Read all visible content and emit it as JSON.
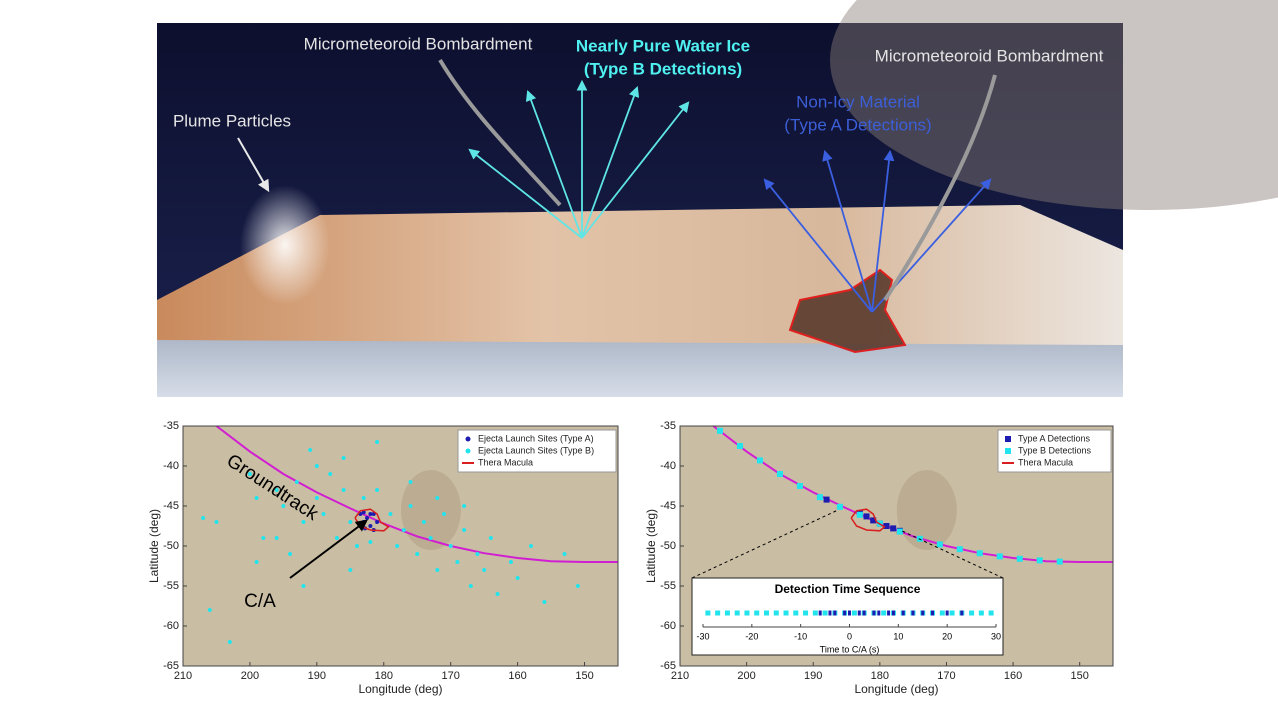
{
  "illustration": {
    "labels": [
      "Micrometeoroid Bombardment",
      "Nearly Pure Water Ice",
      "(Type B Detections)",
      "Plume Particles",
      "Micrometeoroid Bombardment",
      "Non-Icy Material",
      "(Type A Detections)"
    ]
  },
  "chart_data": [
    {
      "type": "scatter",
      "xlabel": "Longitude (deg)",
      "ylabel": "Latitude (deg)",
      "xlim": [
        210,
        145
      ],
      "ylim": [
        -35,
        -65
      ],
      "xticks": [
        210,
        200,
        190,
        180,
        170,
        160,
        150
      ],
      "yticks": [
        -35,
        -40,
        -45,
        -50,
        -55,
        -60,
        -65
      ],
      "legend": "upper right",
      "annotations": [
        {
          "text": "Groundtrack"
        },
        {
          "text": "C/A"
        }
      ],
      "groundtrack": {
        "color": "#d21ed2",
        "x": [
          205,
          200,
          195,
          190,
          185,
          180,
          175,
          170,
          165,
          160,
          155,
          150,
          145
        ],
        "values": [
          -35,
          -38.2,
          -41,
          -43.3,
          -45.3,
          -47.2,
          -48.8,
          -50,
          -50.9,
          -51.5,
          -51.9,
          -52,
          -52
        ]
      },
      "series": [
        {
          "name": "Ejecta Launch Sites (Type A)",
          "color": "#1c1cb0",
          "marker": "circle",
          "x": [
            183.5,
            183,
            182.5,
            182,
            181.5,
            181,
            182,
            183,
            181.5,
            182.8
          ],
          "values": [
            -46,
            -47,
            -46.5,
            -47.5,
            -46,
            -47,
            -46,
            -45.8,
            -48,
            -47.8
          ]
        },
        {
          "name": "Ejecta Launch Sites (Type B)",
          "color": "#22e4ec",
          "marker": "circle",
          "x": [
            207,
            206,
            205,
            203,
            200,
            199,
            198,
            196,
            195,
            194,
            193,
            192,
            191,
            190,
            189,
            188,
            187,
            186,
            185,
            184,
            183,
            182,
            181,
            179,
            178,
            177,
            176,
            175,
            174,
            173,
            172,
            171,
            170,
            169,
            168,
            167,
            166,
            165,
            164,
            163,
            161,
            160,
            158,
            156,
            153,
            151,
            190,
            186,
            181,
            176,
            172,
            168,
            196,
            199,
            192,
            185
          ],
          "values": [
            -46.5,
            -58,
            -47,
            -62,
            -41,
            -44,
            -49,
            -43,
            -45,
            -51,
            -42,
            -47,
            -38,
            -44,
            -46,
            -41,
            -49,
            -43,
            -47,
            -50,
            -44,
            -49.5,
            -43,
            -46,
            -50,
            -48,
            -45,
            -51,
            -47,
            -49,
            -53,
            -46,
            -50,
            -52,
            -48,
            -55,
            -51,
            -53,
            -49,
            -56,
            -52,
            -54,
            -50,
            -57,
            -51,
            -55,
            -40,
            -39,
            -37,
            -42,
            -44,
            -45,
            -49,
            -52,
            -55,
            -53
          ]
        },
        {
          "name": "Thera Macula",
          "color": "#d81e1e",
          "marker": "line",
          "x": [
            184.3,
            183.5,
            182,
            181,
            180.5,
            179.3,
            180,
            182,
            183.5,
            184.3
          ],
          "values": [
            -46.5,
            -45.6,
            -45.4,
            -46,
            -47,
            -47.6,
            -48.1,
            -48,
            -47.5,
            -46.5
          ]
        }
      ]
    },
    {
      "type": "scatter",
      "xlabel": "Longitude (deg)",
      "ylabel": "Latitude (deg)",
      "xlim": [
        210,
        145
      ],
      "ylim": [
        -35,
        -65
      ],
      "xticks": [
        210,
        200,
        190,
        180,
        170,
        160,
        150
      ],
      "yticks": [
        -35,
        -40,
        -45,
        -50,
        -55,
        -60,
        -65
      ],
      "legend": "upper right",
      "groundtrack": {
        "color": "#d21ed2",
        "x": [
          205,
          200,
          195,
          190,
          185,
          180,
          175,
          170,
          165,
          160,
          155,
          150,
          145
        ],
        "values": [
          -35,
          -38.2,
          -41,
          -43.3,
          -45.3,
          -47.2,
          -48.8,
          -50,
          -50.9,
          -51.5,
          -51.9,
          -52,
          -52
        ]
      },
      "series": [
        {
          "name": "Type A Detections",
          "color": "#1c1cb0",
          "marker": "square",
          "x": [
            188,
            183,
            182,
            181,
            180,
            179,
            178,
            177
          ],
          "values": [
            -44.2,
            -45.9,
            -46.3,
            -46.8,
            -47.2,
            -47.5,
            -47.8,
            -48.1
          ]
        },
        {
          "name": "Type B Detections",
          "color": "#22e4ec",
          "marker": "square",
          "x": [
            204,
            201,
            198,
            195,
            192,
            189,
            186,
            183,
            180,
            177,
            174,
            171,
            168,
            165,
            162,
            159,
            156,
            153
          ],
          "values": [
            -35.6,
            -37.5,
            -39.3,
            -41,
            -42.5,
            -43.9,
            -45.1,
            -46.1,
            -47.2,
            -48.2,
            -49.1,
            -49.8,
            -50.4,
            -50.9,
            -51.3,
            -51.6,
            -51.8,
            -51.95
          ]
        },
        {
          "name": "Thera Macula",
          "color": "#d81e1e",
          "marker": "line",
          "x": [
            184.3,
            183.5,
            182,
            181,
            180.5,
            179.3,
            180,
            182,
            183.5,
            184.3
          ],
          "values": [
            -46.5,
            -45.6,
            -45.4,
            -46,
            -47,
            -47.6,
            -48.1,
            -48,
            -47.5,
            -46.5
          ]
        }
      ]
    },
    {
      "type": "strip",
      "title": "Detection Time Sequence",
      "xlabel": "Time to C/A (s)",
      "xlim": [
        -30,
        30
      ],
      "xticks": [
        -30,
        -20,
        -10,
        0,
        10,
        20,
        30
      ],
      "series": [
        {
          "name": "Type B Detections",
          "color": "#22e4ec",
          "values": [
            -29,
            -27,
            -25,
            -23,
            -21,
            -19,
            -17,
            -15,
            -13,
            -11,
            -9,
            -7,
            -5,
            -3,
            -1,
            1,
            3,
            5,
            7,
            9,
            11,
            13,
            15,
            17,
            19,
            21,
            23,
            25,
            27,
            29
          ]
        },
        {
          "name": "Type A Detections",
          "color": "#1c1cb0",
          "values": [
            -6,
            -4,
            -3,
            -1,
            0,
            2,
            3,
            5,
            6,
            8,
            9,
            11,
            13,
            15,
            17,
            20,
            23
          ]
        }
      ]
    }
  ]
}
